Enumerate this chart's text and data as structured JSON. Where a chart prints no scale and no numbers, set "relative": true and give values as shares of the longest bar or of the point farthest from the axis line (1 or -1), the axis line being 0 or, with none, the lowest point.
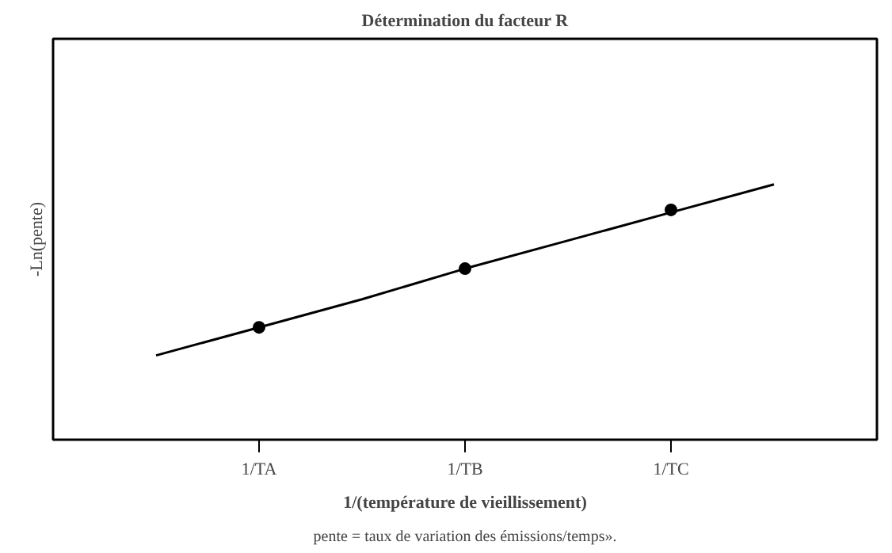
{
  "chart_data": {
    "type": "scatter",
    "title": "Détermination du facteur R",
    "xlabel": "1/(température de vieillissement)",
    "ylabel": "-Ln(pente)",
    "annotations": [
      "pente = taux de variation des émissions/temps»."
    ],
    "relative": true,
    "categories": [
      null,
      null,
      "1/TA",
      null,
      "1/TB",
      null,
      "1/TC",
      null,
      null
    ],
    "grid": false,
    "series": [
      {
        "type": "line",
        "color": "#000000",
        "values": [
          null,
          0.33,
          0.44,
          0.55,
          0.67,
          0.78,
          0.89,
          1.0,
          null
        ],
        "line_style": "solid",
        "marker": "none"
      },
      {
        "color": "#000000",
        "values": [
          null,
          null,
          0.44,
          null,
          0.67,
          null,
          0.9,
          null,
          null
        ],
        "marker": "circle"
      }
    ]
  }
}
